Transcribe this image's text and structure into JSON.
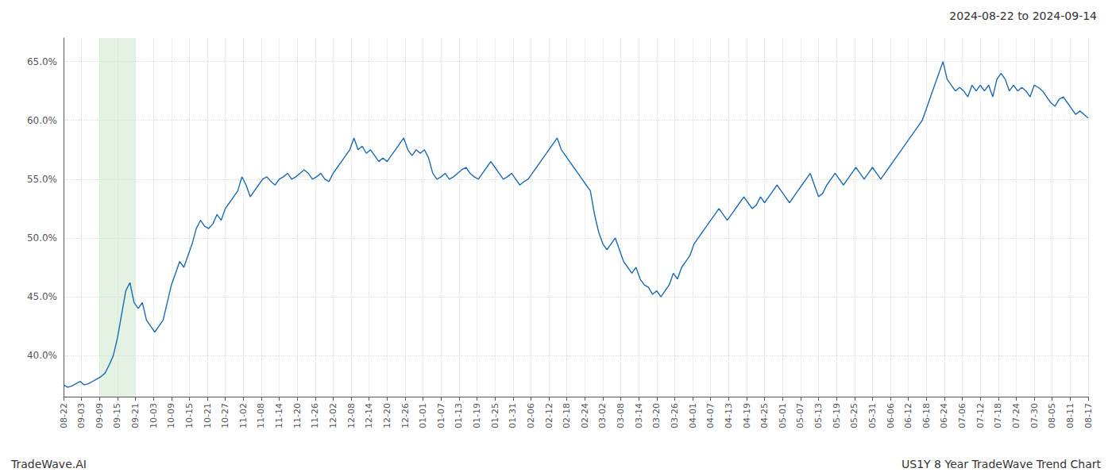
{
  "chart_data": {
    "type": "line",
    "title": "2024-08-22 to 2024-09-14",
    "annotations": [
      "TradeWave.AI",
      "US1Y 8 Year TradeWave Trend Chart"
    ],
    "color": "#1a6bb5",
    "grid": true,
    "shade": {
      "from": "09-09",
      "to": "09-21",
      "color": "#cce8cc"
    },
    "xlim": [
      0,
      247
    ],
    "xticks": [
      {
        "value": 0,
        "label": "08-22"
      },
      {
        "value": 4.333333,
        "label": "09-03"
      },
      {
        "value": 8.666667,
        "label": "09-09"
      },
      {
        "value": 13,
        "label": "09-15"
      },
      {
        "value": 17.333333,
        "label": "09-21"
      },
      {
        "value": 21.666667,
        "label": "10-03"
      },
      {
        "value": 26,
        "label": "10-09"
      },
      {
        "value": 30.333333,
        "label": "10-15"
      },
      {
        "value": 34.666667,
        "label": "10-21"
      },
      {
        "value": 39,
        "label": "10-27"
      },
      {
        "value": 43.333333,
        "label": "11-02"
      },
      {
        "value": 47.666667,
        "label": "11-08"
      },
      {
        "value": 52,
        "label": "11-14"
      },
      {
        "value": 56.333333,
        "label": "11-20"
      },
      {
        "value": 60.666667,
        "label": "11-26"
      },
      {
        "value": 65,
        "label": "12-02"
      },
      {
        "value": 69.333333,
        "label": "12-08"
      },
      {
        "value": 73.666667,
        "label": "12-14"
      },
      {
        "value": 78,
        "label": "12-20"
      },
      {
        "value": 82.333333,
        "label": "12-26"
      },
      {
        "value": 86.666667,
        "label": "01-01"
      },
      {
        "value": 91,
        "label": "01-07"
      },
      {
        "value": 95.333333,
        "label": "01-13"
      },
      {
        "value": 99.666667,
        "label": "01-19"
      },
      {
        "value": 104,
        "label": "01-25"
      },
      {
        "value": 108.333333,
        "label": "01-31"
      },
      {
        "value": 112.666667,
        "label": "02-06"
      },
      {
        "value": 117,
        "label": "02-12"
      },
      {
        "value": 121.333333,
        "label": "02-18"
      },
      {
        "value": 125.666667,
        "label": "02-24"
      },
      {
        "value": 130,
        "label": "03-02"
      },
      {
        "value": 134.333333,
        "label": "03-08"
      },
      {
        "value": 138.666667,
        "label": "03-14"
      },
      {
        "value": 143,
        "label": "03-20"
      },
      {
        "value": 147.333333,
        "label": "03-26"
      },
      {
        "value": 151.666667,
        "label": "04-01"
      },
      {
        "value": 156,
        "label": "04-07"
      },
      {
        "value": 160.333333,
        "label": "04-13"
      },
      {
        "value": 164.666667,
        "label": "04-19"
      },
      {
        "value": 169,
        "label": "04-25"
      },
      {
        "value": 173.333333,
        "label": "05-01"
      },
      {
        "value": 177.666667,
        "label": "05-07"
      },
      {
        "value": 182,
        "label": "05-13"
      },
      {
        "value": 186.333333,
        "label": "05-19"
      },
      {
        "value": 190.666667,
        "label": "05-25"
      },
      {
        "value": 195,
        "label": "05-31"
      },
      {
        "value": 199.333333,
        "label": "06-06"
      },
      {
        "value": 203.666667,
        "label": "06-12"
      },
      {
        "value": 208,
        "label": "06-18"
      },
      {
        "value": 212.333333,
        "label": "06-24"
      },
      {
        "value": 216.666667,
        "label": "07-06"
      },
      {
        "value": 221,
        "label": "07-12"
      },
      {
        "value": 225.333333,
        "label": "07-18"
      },
      {
        "value": 229.666667,
        "label": "07-24"
      },
      {
        "value": 234,
        "label": "07-30"
      },
      {
        "value": 238.333333,
        "label": "08-05"
      },
      {
        "value": 242.666667,
        "label": "08-11"
      },
      {
        "value": 247,
        "label": "08-17"
      }
    ],
    "ylim": [
      36.5,
      67.0
    ],
    "yticks": [
      {
        "value": 40.0,
        "label": "40.0%"
      },
      {
        "value": 45.0,
        "label": "45.0%"
      },
      {
        "value": 50.0,
        "label": "50.0%"
      },
      {
        "value": 55.0,
        "label": "55.0%"
      },
      {
        "value": 60.0,
        "label": "60.0%"
      },
      {
        "value": 65.0,
        "label": "65.0%"
      }
    ],
    "values": [
      37.5,
      37.3,
      37.4,
      37.6,
      37.8,
      37.5,
      37.6,
      37.8,
      38.0,
      38.2,
      38.5,
      39.2,
      40.0,
      41.5,
      43.5,
      45.5,
      46.2,
      44.5,
      44.0,
      44.5,
      43.0,
      42.5,
      42.0,
      42.5,
      43.0,
      44.5,
      46.0,
      47.0,
      48.0,
      47.5,
      48.5,
      49.5,
      50.8,
      51.5,
      51.0,
      50.8,
      51.2,
      52.0,
      51.5,
      52.5,
      53.0,
      53.5,
      54.0,
      55.2,
      54.5,
      53.5,
      54.0,
      54.5,
      55.0,
      55.2,
      54.8,
      54.5,
      55.0,
      55.2,
      55.5,
      55.0,
      55.2,
      55.5,
      55.8,
      55.5,
      55.0,
      55.2,
      55.5,
      55.0,
      54.8,
      55.5,
      56.0,
      56.5,
      57.0,
      57.5,
      58.5,
      57.5,
      57.8,
      57.2,
      57.5,
      57.0,
      56.5,
      56.8,
      56.5,
      57.0,
      57.5,
      58.0,
      58.5,
      57.5,
      57.0,
      57.5,
      57.2,
      57.5,
      56.8,
      55.5,
      55.0,
      55.2,
      55.5,
      55.0,
      55.2,
      55.5,
      55.8,
      56.0,
      55.5,
      55.2,
      55.0,
      55.5,
      56.0,
      56.5,
      56.0,
      55.5,
      55.0,
      55.2,
      55.5,
      55.0,
      54.5,
      54.8,
      55.0,
      55.5,
      56.0,
      56.5,
      57.0,
      57.5,
      58.0,
      58.5,
      57.5,
      57.0,
      56.5,
      56.0,
      55.5,
      55.0,
      54.5,
      54.0,
      52.0,
      50.5,
      49.5,
      49.0,
      49.5,
      50.0,
      49.0,
      48.0,
      47.5,
      47.0,
      47.5,
      46.5,
      46.0,
      45.8,
      45.2,
      45.5,
      45.0,
      45.5,
      46.0,
      47.0,
      46.5,
      47.5,
      48.0,
      48.5,
      49.5,
      50.0,
      50.5,
      51.0,
      51.5,
      52.0,
      52.5,
      52.0,
      51.5,
      52.0,
      52.5,
      53.0,
      53.5,
      53.0,
      52.5,
      52.8,
      53.5,
      53.0,
      53.5,
      54.0,
      54.5,
      54.0,
      53.5,
      53.0,
      53.5,
      54.0,
      54.5,
      55.0,
      55.5,
      54.5,
      53.5,
      53.8,
      54.5,
      55.0,
      55.5,
      55.0,
      54.5,
      55.0,
      55.5,
      56.0,
      55.5,
      55.0,
      55.5,
      56.0,
      55.5,
      55.0,
      55.5,
      56.0,
      56.5,
      57.0,
      57.5,
      58.0,
      58.5,
      59.0,
      59.5,
      60.0,
      61.0,
      62.0,
      63.0,
      64.0,
      65.0,
      63.5,
      63.0,
      62.5,
      62.8,
      62.5,
      62.0,
      63.0,
      62.5,
      63.0,
      62.5,
      63.0,
      62.0,
      63.5,
      64.0,
      63.5,
      62.5,
      63.0,
      62.5,
      62.8,
      62.5,
      62.0,
      63.0,
      62.8,
      62.5,
      62.0,
      61.5,
      61.2,
      61.8,
      62.0,
      61.5,
      61.0,
      60.5,
      60.8,
      60.5,
      60.2
    ]
  }
}
